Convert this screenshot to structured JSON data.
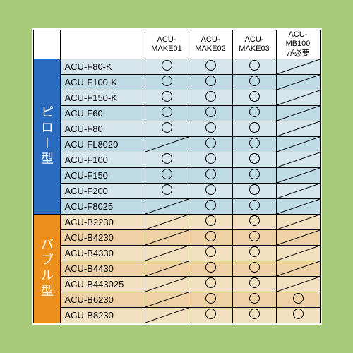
{
  "colors": {
    "page_bg": "#a7cb7a",
    "cat1_bg": "#2b6bbd",
    "cat2_bg": "#ed8f1c",
    "g1_row": "#d6e6ed",
    "g1_row_alt": "#bfdbe6",
    "g2_row": "#f3e0c0",
    "g2_row_alt": "#eed2a6",
    "border": "#000000"
  },
  "columns": [
    "ACU-\nMAKE01",
    "ACU-\nMAKE02",
    "ACU-\nMAKE03",
    "ACU-MB100\nが必要"
  ],
  "groups": [
    {
      "label": "ピロー型",
      "rows": [
        {
          "name": "ACU-F80-K",
          "cells": [
            "O",
            "O",
            "O",
            "S"
          ]
        },
        {
          "name": "ACU-F100-K",
          "cells": [
            "O",
            "O",
            "O",
            "S"
          ]
        },
        {
          "name": "ACU-F150-K",
          "cells": [
            "O",
            "O",
            "O",
            "S"
          ]
        },
        {
          "name": "ACU-F60",
          "cells": [
            "O",
            "O",
            "O",
            "S"
          ]
        },
        {
          "name": "ACU-F80",
          "cells": [
            "O",
            "O",
            "O",
            "S"
          ]
        },
        {
          "name": "ACU-FL8020",
          "cells": [
            "S",
            "O",
            "O",
            "S"
          ]
        },
        {
          "name": "ACU-F100",
          "cells": [
            "O",
            "O",
            "O",
            "S"
          ]
        },
        {
          "name": "ACU-F150",
          "cells": [
            "O",
            "O",
            "O",
            "S"
          ]
        },
        {
          "name": "ACU-F200",
          "cells": [
            "O",
            "O",
            "O",
            "S"
          ]
        },
        {
          "name": "ACU-F8025",
          "cells": [
            "S",
            "O",
            "O",
            "S"
          ]
        }
      ]
    },
    {
      "label": "バブル型",
      "rows": [
        {
          "name": "ACU-B2230",
          "cells": [
            "S",
            "O",
            "O",
            "S"
          ]
        },
        {
          "name": "ACU-B4230",
          "cells": [
            "S",
            "O",
            "O",
            "S"
          ]
        },
        {
          "name": "ACU-B4330",
          "cells": [
            "S",
            "O",
            "O",
            "S"
          ]
        },
        {
          "name": "ACU-B4430",
          "cells": [
            "S",
            "O",
            "O",
            "S"
          ]
        },
        {
          "name": "ACU-B443025",
          "cells": [
            "S",
            "O",
            "O",
            "S"
          ]
        },
        {
          "name": "ACU-B6230",
          "cells": [
            "S",
            "O",
            "O",
            "O"
          ]
        },
        {
          "name": "ACU-B8230",
          "cells": [
            "S",
            "O",
            "O",
            "O"
          ]
        }
      ]
    }
  ]
}
